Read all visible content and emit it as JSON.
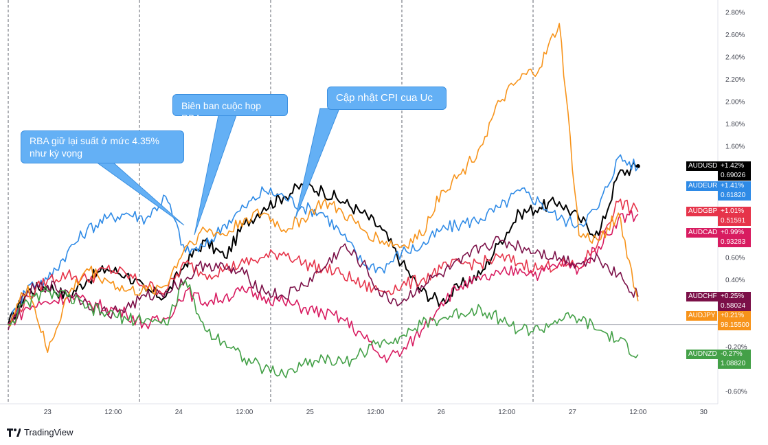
{
  "brand": {
    "name": "TradingView",
    "logo_icon": "tradingview-logo-icon"
  },
  "annotations": [
    {
      "id": "rba",
      "text": "RBA giữ lại suất ở mức 4.35% như kỳ vọng"
    },
    {
      "id": "minutes",
      "text": "Biên ban cuộc họp RBA"
    },
    {
      "id": "cpi",
      "text": "Cập nhật CPI cua Uc"
    }
  ],
  "chart_data": {
    "type": "line",
    "title": "",
    "xlabel": "",
    "ylabel": "",
    "y_unit": "%",
    "ylim": [
      -0.7,
      2.9
    ],
    "x_tick_labels": [
      "23",
      "12:00",
      "24",
      "12:00",
      "25",
      "12:00",
      "26",
      "12:00",
      "27",
      "12:00",
      "30"
    ],
    "y_tick_labels": [
      "-0.60%",
      "-0.20%",
      "0.40%",
      "0.60%",
      "0.80%",
      "1.00%",
      "1.20%",
      "1.40%",
      "1.60%",
      "1.80%",
      "2.00%",
      "2.20%",
      "2.40%",
      "2.60%",
      "2.80%"
    ],
    "x_days": [
      "23",
      "24",
      "25",
      "26",
      "27"
    ],
    "grid": false,
    "zero_line": true,
    "series": [
      {
        "name": "AUDUSD",
        "change": "+1.42%",
        "price": "0.69026",
        "color": "#000000",
        "x": [
          0,
          0.15,
          0.3,
          0.45,
          0.6,
          0.75,
          0.9,
          1.05,
          1.2,
          1.35,
          1.5,
          1.65,
          1.8,
          1.95,
          2.1,
          2.25,
          2.4,
          2.55,
          2.7,
          2.85,
          3.0,
          3.15,
          3.3,
          3.45,
          3.6,
          3.75,
          3.9,
          4.05,
          4.2,
          4.35,
          4.5,
          4.65,
          4.8
        ],
        "y": [
          0,
          0.3,
          0.35,
          0.25,
          0.4,
          0.5,
          0.45,
          0.3,
          0.25,
          0.55,
          0.75,
          0.6,
          0.9,
          1.05,
          1.15,
          1.25,
          1.2,
          1.1,
          1.0,
          0.85,
          0.55,
          0.3,
          0.2,
          0.35,
          0.45,
          0.75,
          1.0,
          1.05,
          1.1,
          0.95,
          0.8,
          1.35,
          1.42
        ]
      },
      {
        "name": "AUDEUR",
        "change": "+1.41%",
        "price": "0.61820",
        "color": "#2e8ae6",
        "x": [
          0,
          0.15,
          0.3,
          0.45,
          0.6,
          0.75,
          0.9,
          1.05,
          1.2,
          1.35,
          1.5,
          1.65,
          1.8,
          1.95,
          2.1,
          2.25,
          2.4,
          2.55,
          2.7,
          2.85,
          3.0,
          3.15,
          3.3,
          3.45,
          3.6,
          3.75,
          3.9,
          4.05,
          4.2,
          4.35,
          4.5,
          4.65,
          4.8
        ],
        "y": [
          0,
          0.35,
          0.4,
          0.65,
          0.85,
          0.95,
          1.0,
          0.95,
          1.15,
          0.65,
          0.7,
          0.9,
          1.05,
          1.2,
          1.15,
          1.05,
          1.0,
          0.8,
          0.55,
          0.5,
          0.65,
          0.7,
          0.85,
          0.9,
          0.95,
          1.05,
          1.2,
          1.1,
          0.95,
          0.9,
          1.05,
          1.5,
          1.41
        ]
      },
      {
        "name": "AUDGBP",
        "change": "+1.01%",
        "price": "0.51591",
        "color": "#e6344a",
        "x": [
          0,
          0.15,
          0.3,
          0.45,
          0.6,
          0.75,
          0.9,
          1.05,
          1.2,
          1.35,
          1.5,
          1.65,
          1.8,
          1.95,
          2.1,
          2.25,
          2.4,
          2.55,
          2.7,
          2.85,
          3.0,
          3.15,
          3.3,
          3.45,
          3.6,
          3.75,
          3.9,
          4.05,
          4.2,
          4.35,
          4.5,
          4.65,
          4.8
        ],
        "y": [
          0,
          0.25,
          0.4,
          0.45,
          0.4,
          0.5,
          0.45,
          0.35,
          0.3,
          0.55,
          0.45,
          0.5,
          0.55,
          0.6,
          0.65,
          0.55,
          0.5,
          0.45,
          0.35,
          0.3,
          0.35,
          0.4,
          0.5,
          0.55,
          0.55,
          0.6,
          0.55,
          0.5,
          0.55,
          0.5,
          0.75,
          1.1,
          1.01
        ]
      },
      {
        "name": "AUDCAD",
        "change": "+0.99%",
        "price": "0.93283",
        "color": "#d81b60",
        "x": [
          0,
          0.15,
          0.3,
          0.45,
          0.6,
          0.75,
          0.9,
          1.05,
          1.2,
          1.35,
          1.5,
          1.65,
          1.8,
          1.95,
          2.1,
          2.25,
          2.4,
          2.55,
          2.7,
          2.85,
          3.0,
          3.15,
          3.3,
          3.45,
          3.6,
          3.75,
          3.9,
          4.05,
          4.2,
          4.35,
          4.5,
          4.65,
          4.8
        ],
        "y": [
          0,
          0.15,
          0.2,
          0.25,
          0.2,
          0.15,
          0.1,
          0.0,
          0.05,
          0.3,
          0.2,
          0.25,
          0.3,
          0.25,
          0.2,
          0.15,
          0.1,
          0.05,
          -0.1,
          -0.3,
          -0.25,
          -0.05,
          0.2,
          0.35,
          0.4,
          0.45,
          0.5,
          0.45,
          0.55,
          0.5,
          0.7,
          0.95,
          0.99
        ]
      },
      {
        "name": "AUDCHF",
        "change": "+0.25%",
        "price": "0.58024",
        "color": "#7b1048",
        "x": [
          0,
          0.15,
          0.3,
          0.45,
          0.6,
          0.75,
          0.9,
          1.05,
          1.2,
          1.35,
          1.5,
          1.65,
          1.8,
          1.95,
          2.1,
          2.25,
          2.4,
          2.55,
          2.7,
          2.85,
          3.0,
          3.15,
          3.3,
          3.45,
          3.6,
          3.75,
          3.9,
          4.05,
          4.2,
          4.35,
          4.5,
          4.65,
          4.8
        ],
        "y": [
          -0.05,
          0.3,
          0.35,
          0.3,
          0.2,
          0.1,
          0.15,
          0.25,
          0.3,
          0.4,
          0.55,
          0.5,
          0.45,
          0.3,
          0.25,
          0.35,
          0.5,
          0.7,
          0.55,
          0.25,
          0.2,
          0.35,
          0.45,
          0.55,
          0.7,
          0.75,
          0.7,
          0.65,
          0.6,
          0.55,
          0.6,
          0.45,
          0.25
        ]
      },
      {
        "name": "AUDJPY",
        "change": "+0.21%",
        "price": "98.15500",
        "color": "#f7931a",
        "x": [
          0,
          0.15,
          0.3,
          0.45,
          0.6,
          0.75,
          0.9,
          1.05,
          1.2,
          1.35,
          1.5,
          1.65,
          1.8,
          1.95,
          2.1,
          2.25,
          2.4,
          2.55,
          2.7,
          2.85,
          3.0,
          3.15,
          3.3,
          3.45,
          3.6,
          3.75,
          3.9,
          4.05,
          4.2,
          4.35,
          4.5,
          4.65,
          4.8
        ],
        "y": [
          0,
          0.35,
          -0.25,
          0.25,
          0.5,
          0.4,
          0.3,
          0.3,
          0.35,
          0.7,
          0.85,
          0.8,
          0.95,
          1.0,
          0.85,
          0.95,
          1.1,
          1.0,
          0.85,
          0.75,
          0.7,
          0.8,
          1.2,
          1.35,
          1.6,
          2.0,
          2.2,
          2.3,
          2.7,
          0.8,
          0.75,
          1.0,
          0.21
        ]
      },
      {
        "name": "AUDNZD",
        "change": "-0.27%",
        "price": "1.08820",
        "color": "#43a047",
        "x": [
          0,
          0.15,
          0.3,
          0.45,
          0.6,
          0.75,
          0.9,
          1.05,
          1.2,
          1.35,
          1.5,
          1.65,
          1.8,
          1.95,
          2.1,
          2.25,
          2.4,
          2.55,
          2.7,
          2.85,
          3.0,
          3.15,
          3.3,
          3.45,
          3.6,
          3.75,
          3.9,
          4.05,
          4.2,
          4.35,
          4.5,
          4.65,
          4.8
        ],
        "y": [
          0,
          0.2,
          0.3,
          0.25,
          0.15,
          0.1,
          0.05,
          0.05,
          0.0,
          0.4,
          -0.05,
          -0.15,
          -0.3,
          -0.4,
          -0.45,
          -0.35,
          -0.3,
          -0.35,
          -0.25,
          -0.15,
          -0.1,
          0.0,
          0.05,
          0.1,
          0.15,
          0.05,
          -0.05,
          -0.05,
          0.05,
          0.05,
          -0.05,
          -0.15,
          -0.27
        ]
      }
    ]
  }
}
